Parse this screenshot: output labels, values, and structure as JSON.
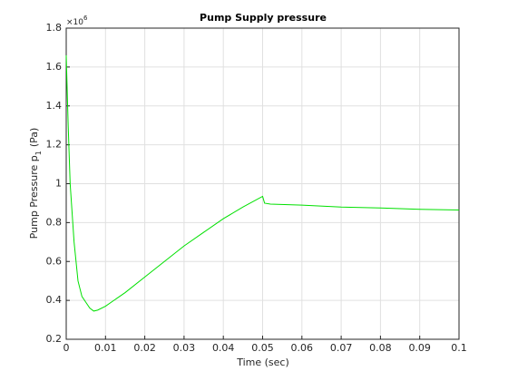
{
  "chart_data": {
    "type": "line",
    "title": "Pump Supply pressure",
    "xlabel": "Time (sec)",
    "ylabel": {
      "text": "Pump Pressure p",
      "subscript": "1",
      "unit": "(Pa)"
    },
    "y_multiplier": {
      "base": "×10",
      "exponent": "6"
    },
    "x": [
      0,
      0.0005,
      0.001,
      0.002,
      0.003,
      0.004,
      0.005,
      0.006,
      0.007,
      0.008,
      0.01,
      0.015,
      0.02,
      0.025,
      0.03,
      0.035,
      0.04,
      0.045,
      0.05,
      0.0505,
      0.052,
      0.06,
      0.07,
      0.08,
      0.09,
      0.1
    ],
    "series": [
      {
        "color": "#00e000",
        "values": [
          1.66,
          1.3,
          1.0,
          0.7,
          0.5,
          0.42,
          0.39,
          0.36,
          0.345,
          0.35,
          0.37,
          0.44,
          0.52,
          0.6,
          0.68,
          0.75,
          0.82,
          0.88,
          0.935,
          0.9,
          0.895,
          0.89,
          0.88,
          0.875,
          0.868,
          0.865
        ]
      }
    ],
    "xlim": [
      0,
      0.1
    ],
    "xticks": [
      0,
      0.01,
      0.02,
      0.03,
      0.04,
      0.05,
      0.06,
      0.07,
      0.08,
      0.09,
      0.1
    ],
    "ylim": [
      0.2,
      1.8
    ],
    "yticks": [
      0.2,
      0.4,
      0.6,
      0.8,
      1,
      1.2,
      1.4,
      1.6,
      1.8
    ],
    "grid": true
  }
}
